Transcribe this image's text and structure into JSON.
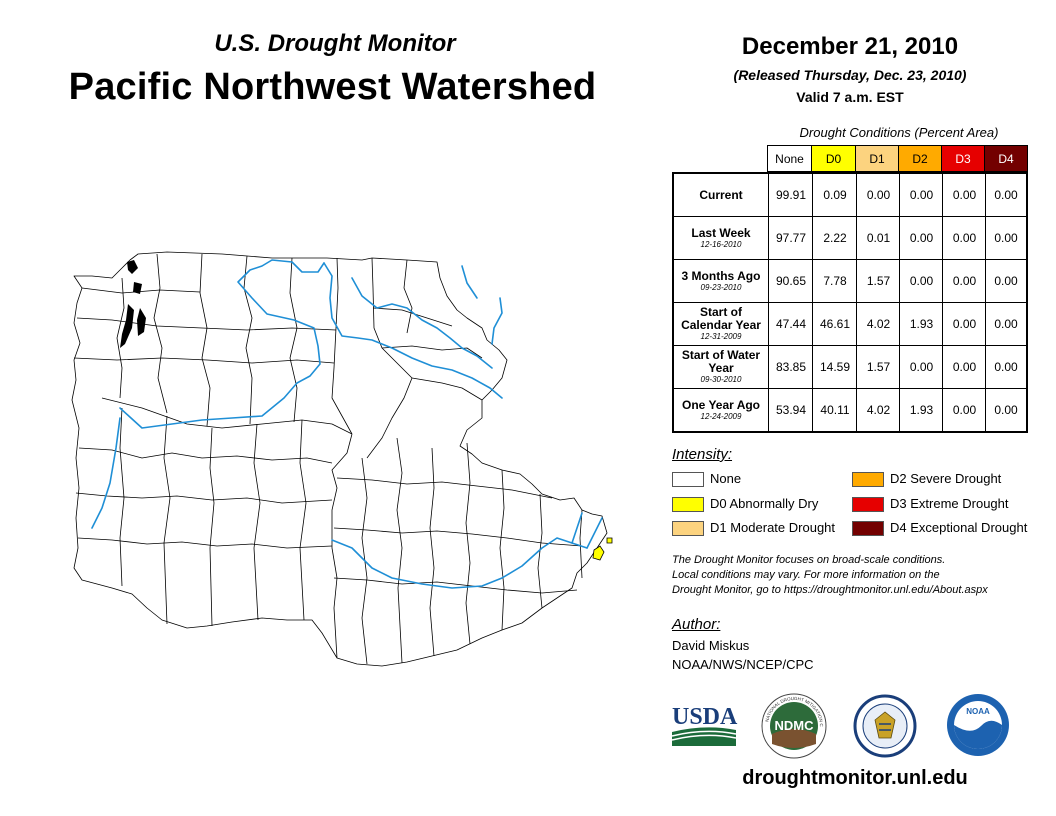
{
  "header": {
    "subtitle": "U.S. Drought Monitor",
    "title": "Pacific Northwest Watershed",
    "date": "December 21, 2010",
    "released": "(Released Thursday, Dec. 23, 2010)",
    "valid": "Valid 7 a.m. EST"
  },
  "table": {
    "caption": "Drought Conditions (Percent Area)",
    "columns": [
      "None",
      "D0",
      "D1",
      "D2",
      "D3",
      "D4"
    ],
    "column_colors": [
      "#ffffff",
      "#ffff00",
      "#fcd37f",
      "#ffaa00",
      "#e60000",
      "#730000"
    ],
    "rows": [
      {
        "label": "Current",
        "date": "",
        "values": [
          "99.91",
          "0.09",
          "0.00",
          "0.00",
          "0.00",
          "0.00"
        ]
      },
      {
        "label": "Last Week",
        "date": "12-16-2010",
        "values": [
          "97.77",
          "2.22",
          "0.01",
          "0.00",
          "0.00",
          "0.00"
        ]
      },
      {
        "label": "3 Months Ago",
        "date": "09-23-2010",
        "values": [
          "90.65",
          "7.78",
          "1.57",
          "0.00",
          "0.00",
          "0.00"
        ]
      },
      {
        "label": "Start of Calendar Year",
        "date": "12-31-2009",
        "values": [
          "47.44",
          "46.61",
          "4.02",
          "1.93",
          "0.00",
          "0.00"
        ]
      },
      {
        "label": "Start of Water Year",
        "date": "09-30-2010",
        "values": [
          "83.85",
          "14.59",
          "1.57",
          "0.00",
          "0.00",
          "0.00"
        ]
      },
      {
        "label": "One Year Ago",
        "date": "12-24-2009",
        "values": [
          "53.94",
          "40.11",
          "4.02",
          "1.93",
          "0.00",
          "0.00"
        ]
      }
    ]
  },
  "legend": {
    "heading": "Intensity:",
    "items": [
      {
        "label": "None",
        "color": "#ffffff"
      },
      {
        "label": "D0 Abnormally Dry",
        "color": "#ffff00"
      },
      {
        "label": "D1 Moderate Drought",
        "color": "#fcd37f"
      },
      {
        "label": "D2 Severe Drought",
        "color": "#ffaa00"
      },
      {
        "label": "D3 Extreme Drought",
        "color": "#e60000"
      },
      {
        "label": "D4 Exceptional Drought",
        "color": "#730000"
      }
    ]
  },
  "note": {
    "line1": "The Drought Monitor focuses on broad-scale conditions.",
    "line2": "Local conditions may vary. For more information on the",
    "line3": "Drought Monitor, go to https://droughtmonitor.unl.edu/About.aspx"
  },
  "author": {
    "heading": "Author:",
    "name": "David Miskus",
    "org": "NOAA/NWS/NCEP/CPC"
  },
  "logos": {
    "usda": "USDA",
    "ndmc": "NDMC",
    "noaa": "NOAA",
    "ndmc_ring": "NATIONAL DROUGHT MITIGATION CENTER"
  },
  "footer": {
    "website": "droughtmonitor.unl.edu"
  },
  "colors": {
    "river": "#1f8fd6",
    "boundary": "#000000",
    "drought_d0": "#ffff00"
  }
}
